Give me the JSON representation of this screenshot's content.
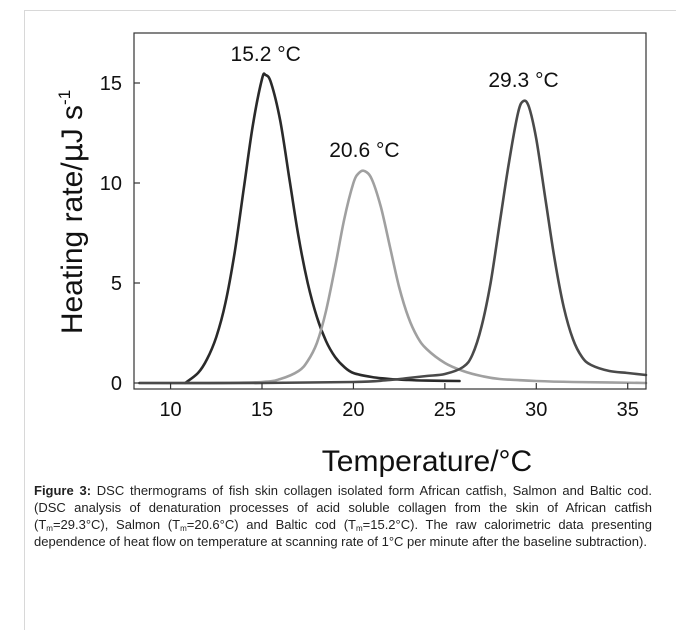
{
  "chart_data": {
    "type": "line",
    "xlabel_main": "Temperature/",
    "xlabel_unit": "°C",
    "ylabel_main": "Heating rate/",
    "ylabel_mu": "µ",
    "ylabel_unit": "J s",
    "ylabel_exp": "-1",
    "xlim": [
      8,
      36
    ],
    "ylim": [
      -0.3,
      17.5
    ],
    "xticks": [
      10,
      15,
      20,
      25,
      30,
      35
    ],
    "yticks": [
      0,
      5,
      10,
      15
    ],
    "grid": false,
    "series": [
      {
        "peak_label": "15.2 °C",
        "color": "#2a2a2a",
        "x": [
          10.8,
          11.5,
          12.0,
          12.5,
          13.0,
          13.5,
          14.0,
          14.5,
          15.0,
          15.2,
          15.5,
          16.0,
          16.5,
          17.0,
          17.5,
          18.0,
          18.5,
          19.0,
          19.5,
          20.0,
          21.0,
          22.0,
          23.0,
          24.0,
          25.8
        ],
        "y": [
          0.0,
          0.5,
          1.2,
          2.3,
          4.0,
          6.5,
          9.7,
          12.9,
          15.2,
          15.4,
          15.0,
          13.1,
          10.2,
          7.3,
          5.0,
          3.3,
          2.1,
          1.3,
          0.8,
          0.5,
          0.3,
          0.2,
          0.15,
          0.12,
          0.1
        ]
      },
      {
        "peak_label": "20.6 °C",
        "color": "#a0a0a0",
        "x": [
          8.3,
          12.0,
          15.0,
          16.0,
          17.0,
          17.5,
          18.0,
          18.5,
          19.0,
          19.5,
          20.0,
          20.3,
          20.6,
          21.0,
          21.5,
          22.0,
          22.5,
          23.0,
          23.5,
          24.0,
          25.0,
          26.0,
          27.0,
          28.0,
          30.0,
          32.0,
          36.0
        ],
        "y": [
          0.0,
          0.0,
          0.05,
          0.2,
          0.6,
          1.1,
          2.0,
          3.6,
          5.8,
          8.2,
          10.0,
          10.5,
          10.6,
          10.2,
          8.8,
          6.8,
          4.8,
          3.3,
          2.3,
          1.7,
          1.0,
          0.6,
          0.35,
          0.2,
          0.1,
          0.05,
          0.0
        ]
      },
      {
        "peak_label": "29.3 °C",
        "color": "#4a4a4a",
        "x": [
          8.3,
          15.0,
          20.0,
          22.0,
          23.0,
          24.0,
          25.0,
          26.0,
          26.5,
          27.0,
          27.5,
          28.0,
          28.5,
          29.0,
          29.3,
          29.6,
          30.0,
          30.5,
          31.0,
          31.5,
          32.0,
          32.5,
          33.0,
          34.0,
          35.0,
          36.0
        ],
        "y": [
          0.0,
          0.0,
          0.05,
          0.15,
          0.25,
          0.35,
          0.45,
          0.8,
          1.4,
          2.8,
          5.0,
          8.0,
          11.0,
          13.5,
          14.1,
          13.8,
          12.2,
          9.2,
          6.2,
          3.8,
          2.2,
          1.3,
          0.9,
          0.6,
          0.5,
          0.4
        ]
      }
    ]
  },
  "caption": {
    "figure_label": "Figure 3:",
    "intro": "DSC thermograms of fish skin collagen isolated form African catfish, Salmon and Baltic cod. (DSC analysis of denaturation processes of acid soluble collagen from the skin of African catfish (T",
    "tm_sub": "m",
    "tm1_rest": "=29.3°C), Salmon (T",
    "tm2_rest": "=20.6°C) and Baltic cod (T",
    "tm3_rest": "=15.2°C). The raw calorimetric data presenting dependence of heat flow on temperature at scanning rate of 1°C per minute after the baseline subtraction)."
  }
}
